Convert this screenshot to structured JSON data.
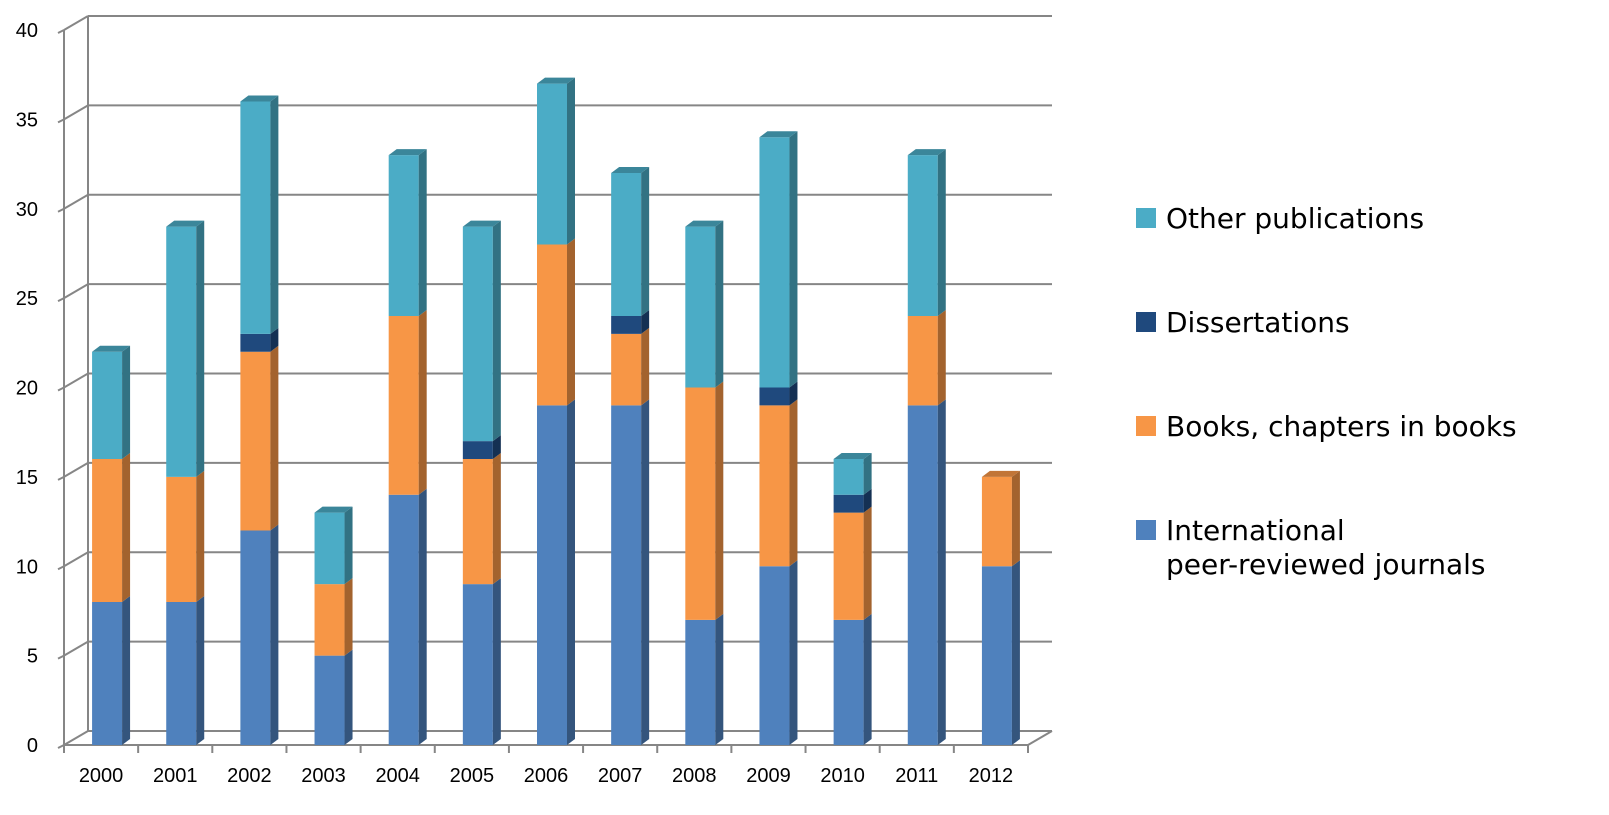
{
  "chart_data": {
    "type": "bar",
    "stacked": true,
    "three_d": true,
    "categories": [
      "2000",
      "2001",
      "2002",
      "2003",
      "2004",
      "2005",
      "2006",
      "2007",
      "2008",
      "2009",
      "2010",
      "2011",
      "2012"
    ],
    "series": [
      {
        "name": "International peer-reviewed journals",
        "color": "#4F81BD",
        "values": [
          8,
          8,
          12,
          5,
          14,
          9,
          19,
          19,
          7,
          10,
          7,
          19,
          10
        ]
      },
      {
        "name": "Books, chapters in books",
        "color": "#F79646",
        "values": [
          8,
          7,
          10,
          4,
          10,
          7,
          9,
          4,
          13,
          9,
          6,
          5,
          5
        ]
      },
      {
        "name": "Dissertations",
        "color": "#1F497D",
        "values": [
          0,
          0,
          1,
          0,
          0,
          1,
          0,
          1,
          0,
          1,
          1,
          0,
          0
        ]
      },
      {
        "name": "Other publications",
        "color": "#4BACC6",
        "values": [
          6,
          14,
          13,
          4,
          9,
          12,
          9,
          8,
          9,
          14,
          2,
          9,
          0
        ]
      }
    ],
    "ylim": [
      0,
      40
    ],
    "yticks": [
      "0",
      "5",
      "10",
      "15",
      "20",
      "25",
      "30",
      "35",
      "40"
    ],
    "grid": true,
    "legend_position": "right",
    "legend": [
      {
        "label": "Other publications",
        "color": "#4BACC6"
      },
      {
        "label": "Dissertations",
        "color": "#1F497D"
      },
      {
        "label": "Books, chapters in books",
        "color": "#F79646"
      },
      {
        "label": "International peer-reviewed journals",
        "color": "#4F81BD"
      }
    ]
  }
}
